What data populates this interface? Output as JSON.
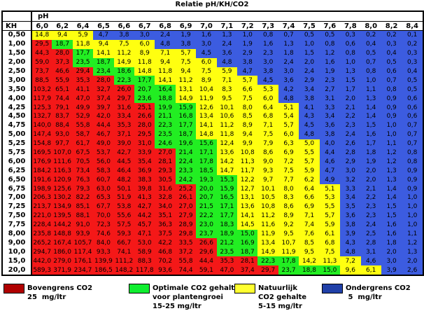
{
  "title": "Relatie pH/KH/CO2",
  "ph_label": "pH",
  "kh_label": "KH",
  "ph_values": [
    "6,0",
    "6,2",
    "6,4",
    "6,5",
    "6,6",
    "6,7",
    "6,8",
    "6,9",
    "7,0",
    "7,1",
    "7,2",
    "7,3",
    "7,4",
    "7,5",
    "7,6",
    "7,8",
    "8,0",
    "8,2",
    "8,4"
  ],
  "rows": [
    {
      "kh": "0,50",
      "v": [
        "14,8",
        "9,4",
        "5,9",
        "4,7",
        "3,8",
        "3,0",
        "2,4",
        "1,9",
        "1,6",
        "1,3",
        "1,0",
        "0,8",
        "0,7",
        "0,5",
        "0,5",
        "0,3",
        "0,2",
        "0,2",
        "0,1"
      ]
    },
    {
      "kh": "1,00",
      "v": [
        "29,5",
        "18,7",
        "11,8",
        "9,4",
        "7,5",
        "6,0",
        "4,8",
        "3,8",
        "3,0",
        "2,4",
        "1,9",
        "1,6",
        "1,3",
        "1,0",
        "0,8",
        "0,6",
        "0,4",
        "0,3",
        "0,2"
      ]
    },
    {
      "kh": "1,50",
      "v": [
        "44,3",
        "28,0",
        "17,7",
        "14,1",
        "11,2",
        "8,9",
        "7,1",
        "5,7",
        "4,5",
        "3,6",
        "2,9",
        "2,3",
        "1,8",
        "1,5",
        "1,2",
        "0,8",
        "0,5",
        "0,4",
        "0,3"
      ]
    },
    {
      "kh": "2,00",
      "v": [
        "59,0",
        "37,3",
        "23,5",
        "18,7",
        "14,9",
        "11,8",
        "9,4",
        "7,5",
        "6,0",
        "4,8",
        "3,8",
        "3,0",
        "2,4",
        "2,0",
        "1,6",
        "1,0",
        "0,7",
        "0,5",
        "0,3"
      ]
    },
    {
      "kh": "2,50",
      "v": [
        "73,7",
        "46,6",
        "29,4",
        "23,4",
        "18,6",
        "14,8",
        "11,8",
        "9,4",
        "7,5",
        "5,9",
        "4,7",
        "3,8",
        "3,0",
        "2,4",
        "1,9",
        "1,3",
        "0,8",
        "0,6",
        "0,4"
      ]
    },
    {
      "kh": "3,00",
      "v": [
        "88,5",
        "55,9",
        "35,3",
        "28,0",
        "22,3",
        "17,7",
        "14,1",
        "11,2",
        "8,9",
        "7,1",
        "5,7",
        "4,5",
        "3,6",
        "2,9",
        "2,3",
        "1,5",
        "1,0",
        "0,7",
        "0,5"
      ]
    },
    {
      "kh": "3,50",
      "v": [
        "103,2",
        "65,1",
        "41,1",
        "32,7",
        "26,0",
        "20,7",
        "16,4",
        "13,1",
        "10,4",
        "8,3",
        "6,6",
        "5,3",
        "4,2",
        "3,4",
        "2,7",
        "1,7",
        "1,1",
        "0,8",
        "0,5"
      ]
    },
    {
      "kh": "4,00",
      "v": [
        "117,9",
        "74,4",
        "47,0",
        "37,4",
        "29,7",
        "23,6",
        "18,8",
        "14,9",
        "11,9",
        "9,5",
        "7,5",
        "6,0",
        "4,8",
        "3,8",
        "3,1",
        "2,0",
        "1,3",
        "0,9",
        "0,6"
      ]
    },
    {
      "kh": "4,25",
      "v": [
        "125,3",
        "79,1",
        "49,9",
        "39,7",
        "31,6",
        "25,1",
        "19,9",
        "15,9",
        "12,6",
        "10,1",
        "8,0",
        "6,4",
        "5,1",
        "4,1",
        "3,3",
        "2,1",
        "1,4",
        "0,9",
        "0,6"
      ]
    },
    {
      "kh": "4,50",
      "v": [
        "132,7",
        "83,7",
        "52,9",
        "42,0",
        "33,4",
        "26,6",
        "21,1",
        "16,8",
        "13,4",
        "10,6",
        "8,5",
        "6,8",
        "5,4",
        "4,3",
        "3,4",
        "2,2",
        "1,4",
        "0,9",
        "0,6"
      ]
    },
    {
      "kh": "4,75",
      "v": [
        "140,0",
        "88,4",
        "55,8",
        "44,4",
        "35,3",
        "28,0",
        "22,3",
        "17,7",
        "14,1",
        "11,2",
        "8,9",
        "7,1",
        "5,7",
        "4,5",
        "3,6",
        "2,3",
        "1,5",
        "1,0",
        "0,7"
      ]
    },
    {
      "kh": "5,00",
      "v": [
        "147,4",
        "93,0",
        "58,7",
        "46,7",
        "37,1",
        "29,5",
        "23,5",
        "18,7",
        "14,8",
        "11,8",
        "9,4",
        "7,5",
        "6,0",
        "4,8",
        "3,8",
        "2,4",
        "1,6",
        "1,0",
        "0,7"
      ]
    },
    {
      "kh": "5,25",
      "v": [
        "154,8",
        "97,7",
        "61,7",
        "49,0",
        "39,0",
        "31,0",
        "24,6",
        "19,6",
        "15,6",
        "12,4",
        "9,9",
        "7,9",
        "6,3",
        "5,0",
        "4,0",
        "2,6",
        "1,7",
        "1,1",
        "0,7"
      ]
    },
    {
      "kh": "5,75",
      "v": [
        "169,5",
        "107,0",
        "67,5",
        "53,7",
        "42,7",
        "33,9",
        "27,0",
        "21,4",
        "17,1",
        "13,6",
        "10,8",
        "8,6",
        "6,9",
        "5,5",
        "4,4",
        "2,8",
        "1,8",
        "1,2",
        "0,8"
      ]
    },
    {
      "kh": "6,00",
      "v": [
        "176,9",
        "111,6",
        "70,5",
        "56,0",
        "44,5",
        "35,4",
        "28,1",
        "22,4",
        "17,8",
        "14,2",
        "11,3",
        "9,0",
        "7,2",
        "5,7",
        "4,6",
        "2,9",
        "1,9",
        "1,2",
        "0,8"
      ]
    },
    {
      "kh": "6,25",
      "v": [
        "184,2",
        "116,3",
        "73,4",
        "58,3",
        "46,4",
        "36,9",
        "29,3",
        "23,3",
        "18,5",
        "14,7",
        "11,7",
        "9,3",
        "7,5",
        "5,9",
        "4,7",
        "3,0",
        "2,0",
        "1,3",
        "0,9"
      ]
    },
    {
      "kh": "6,50",
      "v": [
        "191,6",
        "120,9",
        "76,3",
        "60,7",
        "48,2",
        "38,3",
        "30,5",
        "24,2",
        "19,3",
        "15,3",
        "12,2",
        "9,7",
        "7,7",
        "6,2",
        "4,9",
        "3,2",
        "2,0",
        "1,3",
        "0,9"
      ]
    },
    {
      "kh": "6,75",
      "v": [
        "198,9",
        "125,6",
        "79,3",
        "63,0",
        "50,1",
        "39,8",
        "31,6",
        "25,2",
        "20,0",
        "15,9",
        "12,7",
        "10,1",
        "8,0",
        "6,4",
        "5,1",
        "3,3",
        "2,1",
        "1,4",
        "0,9"
      ]
    },
    {
      "kh": "7,00",
      "v": [
        "206,3",
        "130,2",
        "82,2",
        "65,3",
        "51,9",
        "41,3",
        "32,8",
        "26,1",
        "20,7",
        "16,5",
        "13,1",
        "10,5",
        "8,3",
        "6,6",
        "5,3",
        "3,4",
        "2,2",
        "1,4",
        "1,0"
      ]
    },
    {
      "kh": "7,25",
      "v": [
        "213,7",
        "134,9",
        "85,1",
        "67,7",
        "53,8",
        "42,7",
        "34,0",
        "27,0",
        "21,5",
        "17,1",
        "13,6",
        "10,8",
        "8,6",
        "6,9",
        "5,5",
        "3,5",
        "2,3",
        "1,5",
        "1,0"
      ]
    },
    {
      "kh": "7,50",
      "v": [
        "221,0",
        "139,5",
        "88,1",
        "70,0",
        "55,6",
        "44,2",
        "35,1",
        "27,9",
        "22,2",
        "17,7",
        "14,1",
        "11,2",
        "8,9",
        "7,1",
        "5,7",
        "3,6",
        "2,3",
        "1,5",
        "1,0"
      ]
    },
    {
      "kh": "7,75",
      "v": [
        "228,4",
        "144,2",
        "91,0",
        "72,3",
        "57,5",
        "45,7",
        "36,3",
        "28,9",
        "23,0",
        "18,3",
        "14,5",
        "11,6",
        "9,2",
        "7,4",
        "5,9",
        "3,8",
        "2,4",
        "1,6",
        "1,0"
      ]
    },
    {
      "kh": "8,00",
      "v": [
        "235,8",
        "148,8",
        "93,9",
        "74,6",
        "59,3",
        "47,1",
        "37,5",
        "29,8",
        "23,7",
        "18,9",
        "15,0",
        "11,9",
        "9,5",
        "7,6",
        "6,1",
        "3,9",
        "2,5",
        "1,6",
        "1,1"
      ]
    },
    {
      "kh": "9,00",
      "v": [
        "265,2",
        "167,4",
        "105,7",
        "84,0",
        "66,7",
        "53,0",
        "42,2",
        "33,5",
        "26,6",
        "21,2",
        "16,9",
        "13,4",
        "10,7",
        "8,5",
        "6,8",
        "4,3",
        "2,8",
        "1,8",
        "1,2"
      ]
    },
    {
      "kh": "10,0",
      "v": [
        "294,7",
        "186,0",
        "117,4",
        "93,3",
        "74,1",
        "58,9",
        "46,8",
        "37,2",
        "29,6",
        "23,5",
        "18,7",
        "14,9",
        "11,9",
        "9,5",
        "7,5",
        "4,8",
        "3,1",
        "2,0",
        "1,3"
      ]
    },
    {
      "kh": "15,0",
      "v": [
        "442,0",
        "279,0",
        "176,1",
        "139,9",
        "111,2",
        "88,3",
        "70,2",
        "55,8",
        "44,4",
        "35,3",
        "28,1",
        "22,3",
        "17,8",
        "14,2",
        "11,3",
        "7,2",
        "4,6",
        "3,0",
        "2,0"
      ]
    },
    {
      "kh": "20,0",
      "v": [
        "589,3",
        "371,9",
        "234,7",
        "186,5",
        "148,2",
        "117,8",
        "93,6",
        "74,4",
        "59,1",
        "47,0",
        "37,4",
        "29,7",
        "23,7",
        "18,8",
        "15,0",
        "9,6",
        "6,1",
        "3,9",
        "2,6"
      ]
    }
  ],
  "colors": {
    "red": "#f41818",
    "green": "#22ee22",
    "yellow": "#ffff10",
    "blue": "#3c5ce0"
  },
  "legend": [
    {
      "color": "#b00000",
      "line1": "Bovengrens CO2",
      "line2": "25  mg/ltr",
      "line3": ""
    },
    {
      "color": "#10ee30",
      "line1": "Optimale CO2 gehalte",
      "line2": "voor plantengroei",
      "line3": "15-25 mg/ltr"
    },
    {
      "color": "#ffff30",
      "line1": "Natuurlijk",
      "line2": "CO2 gehalte",
      "line3": "5-15 mg/ltr"
    },
    {
      "color": "#2040a8",
      "line1": "Ondergrens CO2",
      "line2": " 5  mg/ltr",
      "line3": ""
    }
  ]
}
